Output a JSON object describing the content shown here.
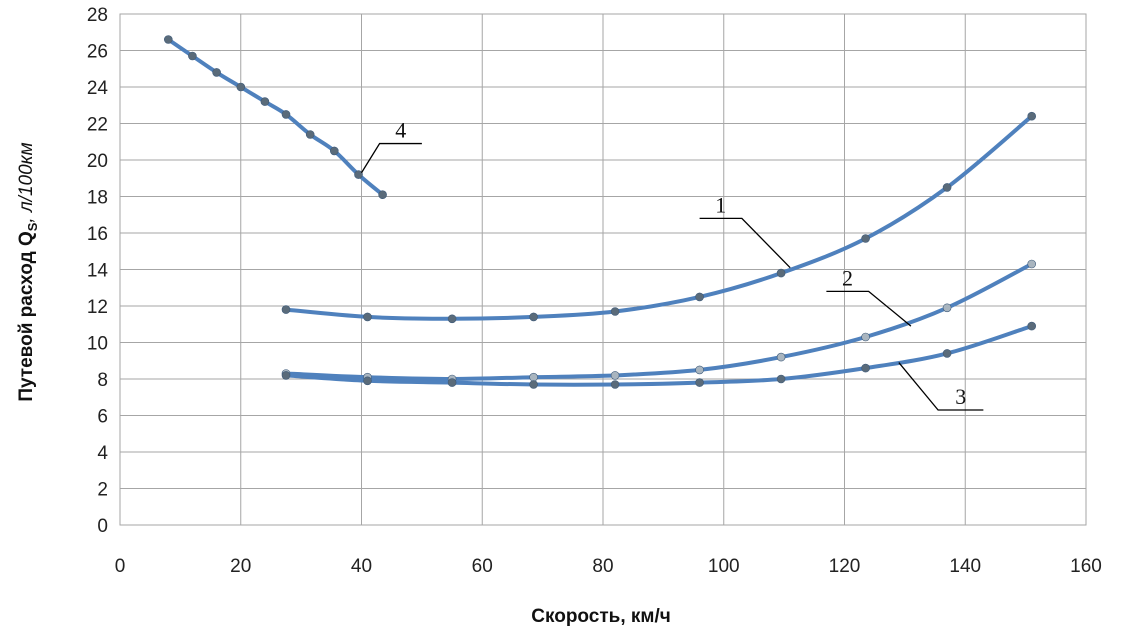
{
  "chart_data": {
    "type": "line",
    "title": "",
    "xlabel": "Скорость, км/ч",
    "ylabel_main": "Путевой расход Q",
    "ylabel_sub": "S",
    "ylabel_unit": ", л/100км",
    "xlim": [
      0,
      160
    ],
    "ylim": [
      0,
      28
    ],
    "xticks": [
      "0",
      "20",
      "40",
      "60",
      "80",
      "100",
      "120",
      "140",
      "160"
    ],
    "yticks": [
      "0",
      "2",
      "4",
      "6",
      "8",
      "10",
      "12",
      "14",
      "16",
      "18",
      "20",
      "22",
      "24",
      "26",
      "28"
    ],
    "grid": true,
    "legend": "none",
    "colors": {
      "line": "#4f81bd",
      "marker_dark": "#5a6b7a",
      "marker_light": "#a9b5bf"
    },
    "series": [
      {
        "label": "1",
        "marker": "dark",
        "x": [
          27.5,
          41,
          55,
          68.5,
          82,
          96,
          109.5,
          123.5,
          137,
          151
        ],
        "y": [
          11.8,
          11.4,
          11.3,
          11.4,
          11.7,
          12.5,
          13.8,
          15.7,
          18.5,
          22.4
        ]
      },
      {
        "label": "2",
        "marker": "light",
        "x": [
          27.5,
          41,
          55,
          68.5,
          82,
          96,
          109.5,
          123.5,
          137,
          151
        ],
        "y": [
          8.3,
          8.1,
          8.0,
          8.1,
          8.2,
          8.5,
          9.2,
          10.3,
          11.9,
          14.3
        ]
      },
      {
        "label": "3",
        "marker": "dark",
        "x": [
          27.5,
          41,
          55,
          68.5,
          82,
          96,
          109.5,
          123.5,
          137,
          151
        ],
        "y": [
          8.2,
          7.9,
          7.8,
          7.7,
          7.7,
          7.8,
          8.0,
          8.6,
          9.4,
          10.9
        ]
      },
      {
        "label": "4",
        "marker": "dark",
        "x": [
          8,
          12,
          16,
          20,
          24,
          27.5,
          31.5,
          35.5,
          39.5,
          43.5
        ],
        "y": [
          26.6,
          25.7,
          24.8,
          24.0,
          23.2,
          22.5,
          21.4,
          20.5,
          19.2,
          18.1
        ]
      }
    ],
    "annotations": [
      {
        "text": "1",
        "series": 0,
        "at_x": 111,
        "at_y": 14.1,
        "elbow_x": 103,
        "elbow_y": 16.8,
        "end_x": 96
      },
      {
        "text": "2",
        "series": 1,
        "at_x": 131,
        "at_y": 10.9,
        "elbow_x": 124,
        "elbow_y": 12.8,
        "end_x": 117
      },
      {
        "text": "3",
        "series": 2,
        "at_x": 129,
        "at_y": 8.9,
        "elbow_x": 135.5,
        "elbow_y": 6.3,
        "end_x": 143
      },
      {
        "text": "4",
        "series": 3,
        "at_x": 40,
        "at_y": 19.3,
        "elbow_x": 43,
        "elbow_y": 20.9,
        "end_x": 50
      }
    ]
  }
}
